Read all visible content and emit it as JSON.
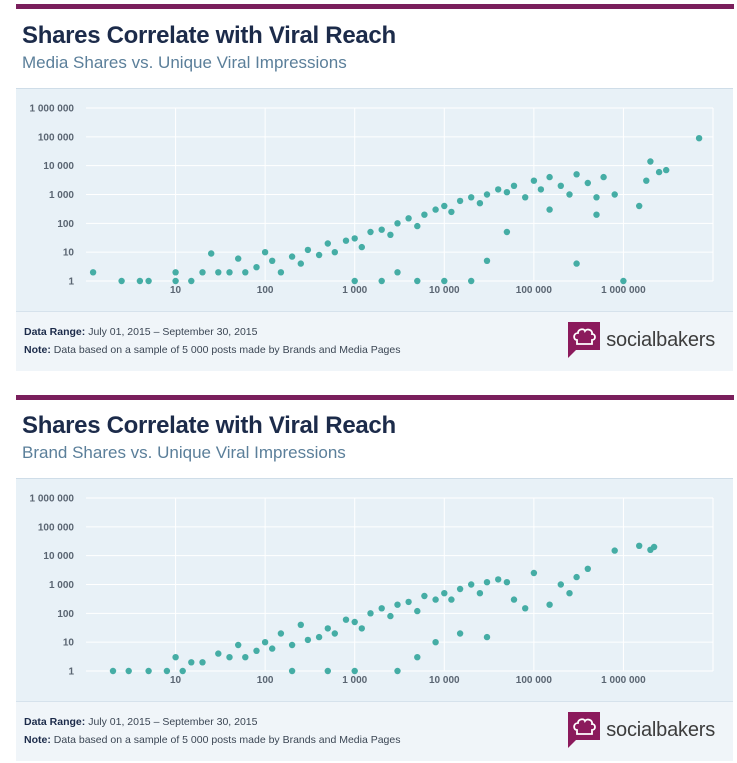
{
  "panels": [
    {
      "title": "Shares Correlate with Viral Reach",
      "subtitle": "Media Shares vs. Unique Viral Impressions",
      "footer": {
        "range_label": "Data Range:",
        "range_value": "July 01, 2015 – September 30, 2015",
        "note_label": "Note:",
        "note_value": "Data based on a sample of 5 000 posts made by Brands and Media Pages"
      },
      "logo_text": "socialbakers"
    },
    {
      "title": "Shares Correlate with Viral Reach",
      "subtitle": "Brand Shares vs. Unique Viral Impressions",
      "footer": {
        "range_label": "Data Range:",
        "range_value": "July 01, 2015 – September 30, 2015",
        "note_label": "Note:",
        "note_value": "Data based on a sample of 5 000 posts made by Brands and Media Pages"
      },
      "logo_text": "socialbakers"
    }
  ],
  "colors": {
    "accent": "#7a1f5c",
    "point": "#45ada5",
    "title": "#1c2b4a",
    "subtitle": "#5b7f9a",
    "chart_bg": "#e8f1f7",
    "grid": "#ffffff",
    "logo": "#8b1a5c"
  },
  "chart_data": [
    {
      "type": "scatter",
      "title": "Media Shares vs. Unique Viral Impressions",
      "x_scale": "log",
      "y_scale": "log",
      "xlim": [
        1,
        10000000
      ],
      "ylim": [
        1,
        1000000
      ],
      "x_ticks": [
        "10",
        "100",
        "1 000",
        "10 000",
        "100 000",
        "1 000 000"
      ],
      "y_ticks": [
        "1 000 000",
        "100 000",
        "10 000",
        "1 000",
        "100",
        "10",
        "1"
      ],
      "grid": true,
      "series": [
        {
          "points": [
            [
              1.2,
              2
            ],
            [
              2.5,
              1
            ],
            [
              4,
              1
            ],
            [
              5,
              1
            ],
            [
              10,
              2
            ],
            [
              10,
              1
            ],
            [
              15,
              1
            ],
            [
              20,
              2
            ],
            [
              25,
              9
            ],
            [
              30,
              2
            ],
            [
              40,
              2
            ],
            [
              50,
              6
            ],
            [
              60,
              2
            ],
            [
              80,
              3
            ],
            [
              100,
              10
            ],
            [
              120,
              5
            ],
            [
              150,
              2
            ],
            [
              200,
              7
            ],
            [
              250,
              4
            ],
            [
              300,
              12
            ],
            [
              400,
              8
            ],
            [
              500,
              20
            ],
            [
              600,
              10
            ],
            [
              800,
              25
            ],
            [
              1000,
              30
            ],
            [
              1200,
              15
            ],
            [
              1500,
              50
            ],
            [
              2000,
              60
            ],
            [
              2500,
              40
            ],
            [
              3000,
              100
            ],
            [
              4000,
              150
            ],
            [
              5000,
              80
            ],
            [
              6000,
              200
            ],
            [
              8000,
              300
            ],
            [
              10000,
              400
            ],
            [
              12000,
              250
            ],
            [
              15000,
              600
            ],
            [
              20000,
              800
            ],
            [
              25000,
              500
            ],
            [
              30000,
              1000
            ],
            [
              40000,
              1500
            ],
            [
              50000,
              1200
            ],
            [
              60000,
              2000
            ],
            [
              80000,
              800
            ],
            [
              100000,
              3000
            ],
            [
              120000,
              1500
            ],
            [
              150000,
              4000
            ],
            [
              200000,
              2000
            ],
            [
              250000,
              1000
            ],
            [
              300000,
              5000
            ],
            [
              400000,
              2500
            ],
            [
              500000,
              800
            ],
            [
              600000,
              4000
            ],
            [
              800000,
              1000
            ],
            [
              1000000,
              1
            ],
            [
              1500000,
              400
            ],
            [
              1800000,
              3000
            ],
            [
              2000000,
              14000
            ],
            [
              2500000,
              6000
            ],
            [
              3000000,
              7000
            ],
            [
              7000000,
              90000
            ],
            [
              300000,
              4
            ],
            [
              500000,
              200
            ],
            [
              150000,
              300
            ],
            [
              50000,
              50
            ],
            [
              30000,
              5
            ],
            [
              20000,
              1
            ],
            [
              10000,
              1
            ],
            [
              5000,
              1
            ],
            [
              3000,
              2
            ],
            [
              2000,
              1
            ],
            [
              1000,
              1
            ]
          ]
        }
      ]
    },
    {
      "type": "scatter",
      "title": "Brand Shares vs. Unique Viral Impressions",
      "x_scale": "log",
      "y_scale": "log",
      "xlim": [
        1,
        10000000
      ],
      "ylim": [
        1,
        1000000
      ],
      "x_ticks": [
        "10",
        "100",
        "1 000",
        "10 000",
        "100 000",
        "1 000 000"
      ],
      "y_ticks": [
        "1 000 000",
        "100 000",
        "10 000",
        "1 000",
        "100",
        "10",
        "1"
      ],
      "grid": true,
      "series": [
        {
          "points": [
            [
              2,
              1
            ],
            [
              3,
              1
            ],
            [
              5,
              1
            ],
            [
              8,
              1
            ],
            [
              10,
              3
            ],
            [
              12,
              1
            ],
            [
              15,
              2
            ],
            [
              20,
              2
            ],
            [
              30,
              4
            ],
            [
              40,
              3
            ],
            [
              50,
              8
            ],
            [
              60,
              3
            ],
            [
              80,
              5
            ],
            [
              100,
              10
            ],
            [
              120,
              6
            ],
            [
              150,
              20
            ],
            [
              200,
              8
            ],
            [
              250,
              40
            ],
            [
              300,
              12
            ],
            [
              400,
              15
            ],
            [
              500,
              30
            ],
            [
              600,
              20
            ],
            [
              800,
              60
            ],
            [
              1000,
              50
            ],
            [
              1200,
              30
            ],
            [
              1500,
              100
            ],
            [
              2000,
              150
            ],
            [
              2500,
              80
            ],
            [
              3000,
              200
            ],
            [
              4000,
              250
            ],
            [
              5000,
              120
            ],
            [
              6000,
              400
            ],
            [
              8000,
              300
            ],
            [
              10000,
              500
            ],
            [
              12000,
              300
            ],
            [
              15000,
              700
            ],
            [
              20000,
              1000
            ],
            [
              25000,
              500
            ],
            [
              30000,
              1200
            ],
            [
              40000,
              1500
            ],
            [
              50000,
              1200
            ],
            [
              60000,
              300
            ],
            [
              80000,
              150
            ],
            [
              100000,
              2500
            ],
            [
              150000,
              200
            ],
            [
              200000,
              1000
            ],
            [
              250000,
              500
            ],
            [
              300000,
              1800
            ],
            [
              400000,
              3500
            ],
            [
              800000,
              15000
            ],
            [
              1500000,
              22000
            ],
            [
              2000000,
              16000
            ],
            [
              2200000,
              20000
            ],
            [
              3000,
              1
            ],
            [
              5000,
              3
            ],
            [
              8000,
              10
            ],
            [
              15000,
              20
            ],
            [
              30000,
              15
            ],
            [
              1000,
              1
            ],
            [
              500,
              1
            ],
            [
              200,
              1
            ]
          ]
        }
      ]
    }
  ]
}
